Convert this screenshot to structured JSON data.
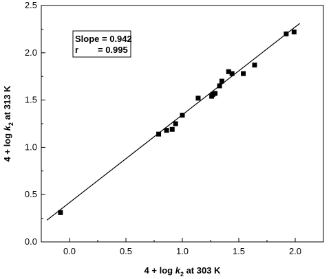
{
  "chart_data": {
    "type": "scatter",
    "xlabel": {
      "prefix": "4 + log ",
      "k": "k",
      "sub": "2",
      "suffix": " at 303 K"
    },
    "ylabel": {
      "prefix": "4 + log ",
      "k": "k",
      "sub": "2",
      "suffix": " at 313 K"
    },
    "xlim": [
      -0.25,
      2.25
    ],
    "ylim": [
      0.0,
      2.5
    ],
    "x_ticks": [
      0.0,
      0.5,
      1.0,
      1.5,
      2.0
    ],
    "x_tick_labels": [
      "0.0",
      "0.5",
      "1.0",
      "1.5",
      "2.0"
    ],
    "y_ticks": [
      0.0,
      0.5,
      1.0,
      1.5,
      2.0,
      2.5
    ],
    "y_tick_labels": [
      "0.0",
      "0.5",
      "1.0",
      "1.5",
      "2.0",
      "2.5"
    ],
    "grid": false,
    "legend_position": "top-left",
    "annotation": {
      "line1": "Slope = 0.942",
      "line2_left": "r",
      "line2_right": "= 0.995"
    },
    "points": [
      {
        "x": -0.08,
        "y": 0.31
      },
      {
        "x": 0.79,
        "y": 1.14
      },
      {
        "x": 0.86,
        "y": 1.18
      },
      {
        "x": 0.91,
        "y": 1.19
      },
      {
        "x": 0.94,
        "y": 1.25
      },
      {
        "x": 1.0,
        "y": 1.34
      },
      {
        "x": 1.14,
        "y": 1.52
      },
      {
        "x": 1.26,
        "y": 1.54
      },
      {
        "x": 1.27,
        "y": 1.56
      },
      {
        "x": 1.29,
        "y": 1.57
      },
      {
        "x": 1.33,
        "y": 1.65
      },
      {
        "x": 1.35,
        "y": 1.7
      },
      {
        "x": 1.41,
        "y": 1.8
      },
      {
        "x": 1.44,
        "y": 1.78
      },
      {
        "x": 1.54,
        "y": 1.78
      },
      {
        "x": 1.64,
        "y": 1.87
      },
      {
        "x": 1.92,
        "y": 2.2
      },
      {
        "x": 1.99,
        "y": 2.22
      }
    ],
    "fit_line": {
      "x": [
        -0.2,
        2.04
      ],
      "y": [
        0.23,
        2.31
      ]
    },
    "colors": {
      "marker": "#000000",
      "line": "#000000",
      "axes": "#000000"
    }
  }
}
